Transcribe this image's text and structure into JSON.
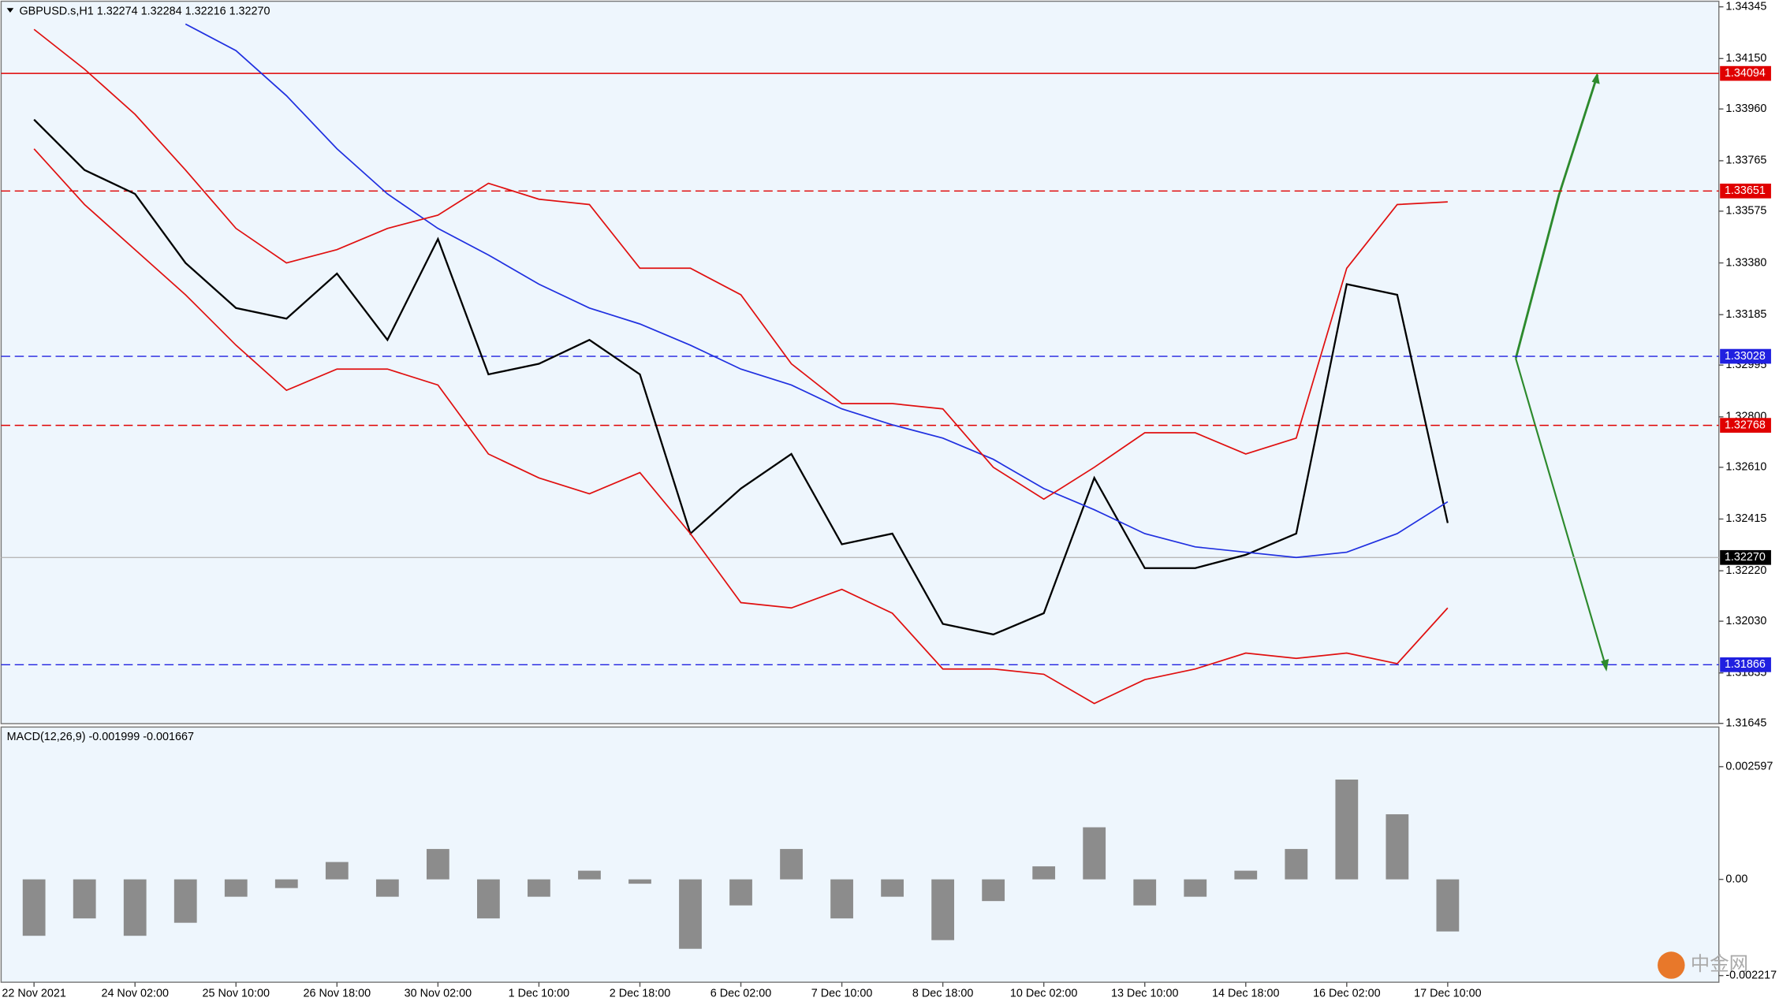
{
  "chart_data": [
    {
      "type": "line",
      "title": "GBPUSD.s,H1  1.32274 1.32284 1.32216 1.32270",
      "categories": [
        "22 Nov 2021",
        null,
        "24 Nov 02:00",
        null,
        "25 Nov 10:00",
        null,
        "26 Nov 18:00",
        null,
        "30 Nov 02:00",
        null,
        "1 Dec 10:00",
        null,
        "2 Dec 18:00",
        null,
        "6 Dec 02:00",
        null,
        "7 Dec 10:00",
        null,
        "8 Dec 18:00",
        null,
        "10 Dec 02:00",
        null,
        "13 Dec 10:00",
        null,
        "14 Dec 18:00",
        null,
        "16 Dec 02:00",
        null,
        "17 Dec 10:00"
      ],
      "series": [
        {
          "color": "#000000",
          "values": [
            1.3392,
            1.3373,
            1.3364,
            1.3338,
            1.3321,
            1.3317,
            1.3334,
            1.3309,
            1.3347,
            1.3296,
            1.33,
            1.3309,
            1.3296,
            1.3236,
            1.3253,
            1.3266,
            1.3232,
            1.3236,
            1.3202,
            1.3198,
            1.3206,
            1.3257,
            1.3223,
            1.3223,
            1.3228,
            1.3236,
            1.333,
            1.3326,
            1.324
          ]
        },
        {
          "color": "#2030e0",
          "values": [
            null,
            null,
            null,
            1.3428,
            1.3418,
            1.3401,
            1.3381,
            1.3364,
            1.3351,
            1.3341,
            1.333,
            1.3321,
            1.3315,
            1.3307,
            1.3298,
            1.3292,
            1.3283,
            1.3277,
            1.3272,
            1.3264,
            1.3253,
            1.3245,
            1.3236,
            1.3231,
            1.3229,
            1.3227,
            1.3229,
            1.3236,
            1.3248
          ]
        },
        {
          "color": "#e01010",
          "values": [
            1.3426,
            1.3411,
            1.3394,
            1.3373,
            1.3351,
            1.3338,
            1.3343,
            1.3351,
            1.3356,
            1.3368,
            1.3362,
            1.336,
            1.3336,
            1.3336,
            1.3326,
            1.33,
            1.3285,
            1.3285,
            1.3283,
            1.3261,
            1.3249,
            1.3261,
            1.3274,
            1.3274,
            1.3266,
            1.3272,
            1.3336,
            1.336,
            1.3361
          ]
        },
        {
          "color": "#e01010",
          "values": [
            1.3381,
            1.336,
            1.3343,
            1.3326,
            1.3307,
            1.329,
            1.3298,
            1.3298,
            1.3292,
            1.3266,
            1.3257,
            1.3251,
            1.3259,
            1.3236,
            1.321,
            1.3208,
            1.3215,
            1.3206,
            1.3185,
            1.3185,
            1.3183,
            1.3172,
            1.3181,
            1.3185,
            1.3191,
            1.3189,
            1.3191,
            1.3187,
            1.3208
          ]
        }
      ],
      "ylim": [
        1.31644,
        1.34366
      ],
      "yticks": [
        1.34345,
        {
          "value": 1.3415,
          "label": "1.34150"
        },
        {
          "value": 1.3396,
          "label": "1.33960"
        },
        1.33765,
        1.33575,
        {
          "value": 1.3338,
          "label": "1.33380"
        },
        1.33185,
        1.32995,
        {
          "value": 1.328,
          "label": "1.32800"
        },
        {
          "value": 1.3261,
          "label": "1.32610"
        },
        1.32415,
        {
          "value": 1.3222,
          "label": "1.32220"
        },
        {
          "value": 1.3203,
          "label": "1.32030"
        },
        1.31835,
        1.31645
      ],
      "hlines": [
        {
          "value": 1.34094,
          "color": "#e00000",
          "dash": false
        },
        {
          "value": 1.33651,
          "color": "#e00000",
          "dash": true
        },
        {
          "value": 1.33028,
          "color": "#2020e0",
          "dash": true
        },
        {
          "value": 1.32768,
          "color": "#e00000",
          "dash": true
        },
        {
          "value": 1.31866,
          "color": "#2020e0",
          "dash": true
        },
        {
          "value": 1.3227,
          "label": "1.32270",
          "color": "#000000",
          "dash": false
        }
      ],
      "watermark": "中金网"
    },
    {
      "type": "bar",
      "title": "MACD(12,26,9) -0.001999 -0.001667",
      "color": "#8c8c8c",
      "values": [
        -0.0013,
        -0.0009,
        -0.0013,
        -0.001,
        -0.0004,
        -0.0002,
        0.0004,
        -0.0004,
        0.0007,
        -0.0009,
        -0.0004,
        0.0002,
        -0.0001,
        -0.0016,
        -0.0006,
        0.0007,
        -0.0009,
        -0.0004,
        -0.0014,
        -0.0005,
        0.0003,
        0.0012,
        -0.0006,
        -0.0004,
        0.0002,
        0.0007,
        0.0023,
        0.0015,
        -0.0012
      ],
      "ylim": [
        -0.00237,
        0.00351
      ],
      "yticks": [
        0.002597,
        {
          "value": 0,
          "label": "0.00"
        },
        -0.002217
      ]
    }
  ]
}
